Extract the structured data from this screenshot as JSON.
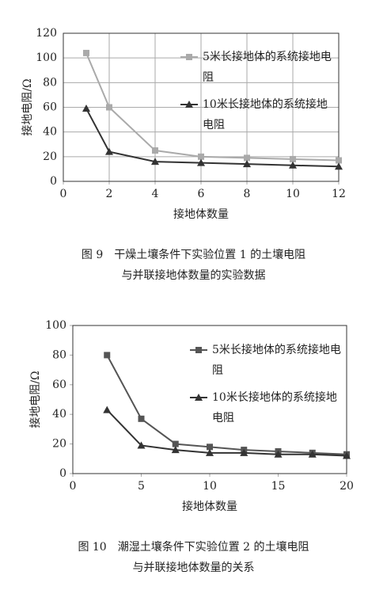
{
  "chart_data": [
    {
      "type": "line",
      "xlabel": "接地体数量",
      "ylabel": "接地电阻/Ω",
      "caption": [
        "图 9　干燥土壤条件下实验位置 1 的土壤电阻",
        "与并联接地体数量的实验数据"
      ],
      "x": [
        1,
        2,
        4,
        6,
        8,
        10,
        12
      ],
      "series": [
        {
          "name": "5米长接地体的系统接地电阻",
          "color": "#aaaaaa",
          "marker": "square",
          "values": [
            104,
            60,
            25,
            20,
            19,
            18,
            17
          ]
        },
        {
          "name": "10米长接地体的系统接地电阻",
          "color": "#333333",
          "marker": "triangle",
          "values": [
            59,
            24,
            16,
            15,
            14,
            13,
            12
          ]
        }
      ],
      "xlim": [
        0,
        12
      ],
      "xticks": [
        0,
        2,
        4,
        6,
        8,
        10,
        12
      ],
      "ylim": [
        0,
        120
      ],
      "yticks": [
        0,
        20,
        40,
        60,
        80,
        100,
        120
      ],
      "grid": true
    },
    {
      "type": "line",
      "xlabel": "接地体数量",
      "ylabel": "接地电阻/Ω",
      "caption": [
        "图 10　潮湿土壤条件下实验位置 2 的土壤电阻",
        "与并联接地体数量的关系"
      ],
      "x": [
        2.5,
        5,
        7.5,
        10,
        12.5,
        15,
        17.5,
        20
      ],
      "series": [
        {
          "name": "5米长接地体的系统接地电阻",
          "color": "#555555",
          "marker": "square",
          "values": [
            80,
            37,
            20,
            18,
            16,
            15,
            14,
            13
          ]
        },
        {
          "name": "10米长接地体的系统接地电阻",
          "color": "#333333",
          "marker": "triangle",
          "values": [
            43,
            19,
            16,
            14,
            14,
            13,
            13,
            12
          ]
        }
      ],
      "xlim": [
        0,
        20
      ],
      "xticks": [
        0,
        5,
        10,
        15,
        20
      ],
      "ylim": [
        0,
        100
      ],
      "yticks": [
        0,
        20,
        40,
        60,
        80,
        100
      ],
      "grid": false
    }
  ]
}
